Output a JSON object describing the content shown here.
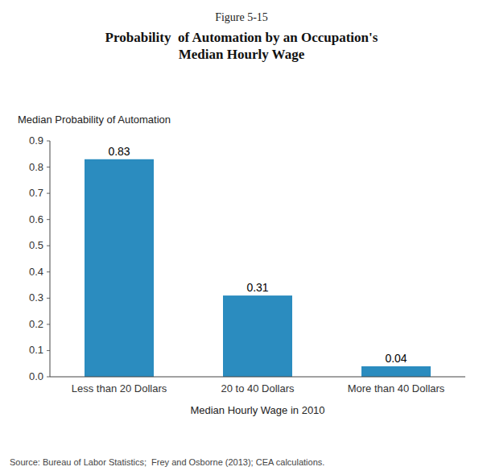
{
  "chart_data": {
    "type": "bar",
    "subtitle": "Figure 5-15",
    "title": "Probability  of Automation by an Occupation's\nMedian Hourly Wage",
    "y_label": "Median Probability of Automation",
    "x_label": "Median Hourly Wage in 2010",
    "annotations": [
      "Source: Bureau of Labor Statistics;  Frey and Osborne (2013); CEA calculations."
    ],
    "categories": [
      "Less than 20 Dollars",
      "20 to 40 Dollars",
      "More than 40 Dollars"
    ],
    "values": [
      0.83,
      0.31,
      0.04
    ],
    "color": "#2b8cbf",
    "ylim": [
      0,
      0.9
    ],
    "yticks": [
      {
        "value": 0.0,
        "label": "0.0"
      },
      0.1,
      0.2,
      0.3,
      0.4,
      0.5,
      0.6,
      0.7,
      0.8,
      0.9
    ],
    "data_labels": true,
    "grid": false
  }
}
